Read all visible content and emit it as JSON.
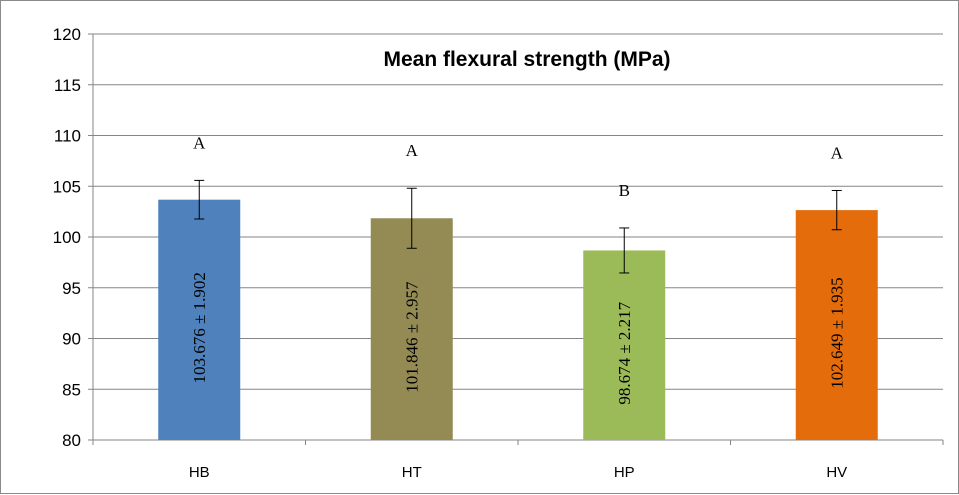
{
  "chart_data": {
    "type": "bar",
    "title": "Mean flexural strength (MPa)",
    "categories": [
      "HB",
      "HT",
      "HP",
      "HV"
    ],
    "values": [
      103.676,
      101.846,
      98.674,
      102.649
    ],
    "errors": [
      1.902,
      2.957,
      2.217,
      1.935
    ],
    "value_labels": [
      "103.676 ± 1.902",
      "101.846 ± 2.957",
      "98.674 ± 2.217",
      "102.649 ± 1.935"
    ],
    "group_letters": [
      "A",
      "A",
      "B",
      "A"
    ],
    "colors": [
      "#4f81bd",
      "#948a54",
      "#9bbb59",
      "#e46c0a"
    ],
    "ylim": [
      80,
      120
    ],
    "yticks": [
      80,
      85,
      90,
      95,
      100,
      105,
      110,
      115,
      120
    ],
    "grid": true,
    "legend": "none"
  }
}
